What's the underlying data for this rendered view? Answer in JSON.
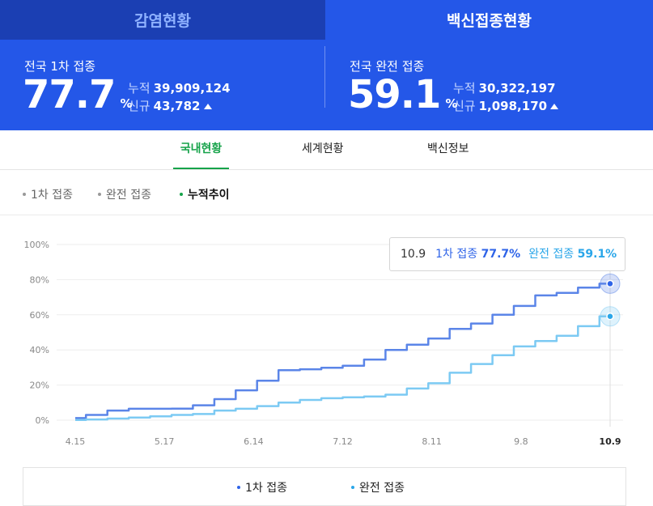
{
  "top_tabs": [
    {
      "label": "감염현황",
      "active": false
    },
    {
      "label": "백신접종현황",
      "active": true
    }
  ],
  "stats": {
    "first": {
      "label": "전국 1차 접종",
      "value": "77.7",
      "unit": "%",
      "cumulative_label": "누적",
      "cumulative": "39,909,124",
      "new_label": "신규",
      "new": "43,782"
    },
    "full": {
      "label": "전국 완전 접종",
      "value": "59.1",
      "unit": "%",
      "cumulative_label": "누적",
      "cumulative": "30,322,197",
      "new_label": "신규",
      "new": "1,098,170"
    }
  },
  "sub_tabs": [
    "국내현황",
    "세계현황",
    "백신정보"
  ],
  "filters": [
    "1차 접종",
    "완전 접종",
    "누적추이"
  ],
  "tooltip": {
    "date": "10.9",
    "series1_label": "1차 접종",
    "series1_value": "77.7%",
    "series2_label": "완전 접종",
    "series2_value": "59.1%"
  },
  "legend": [
    "1차 접종",
    "완전 접종"
  ],
  "colors": {
    "series1": "#5b85e8",
    "series2": "#7ccaf3",
    "accent": "#2457e8",
    "active_tab": "#16a34a"
  },
  "chart_data": {
    "type": "line",
    "x_ticks": [
      "4.15",
      "5.17",
      "6.14",
      "7.12",
      "8.11",
      "9.8",
      "10.9"
    ],
    "y_ticks": [
      "0%",
      "20%",
      "40%",
      "60%",
      "80%",
      "100%"
    ],
    "ylim": [
      0,
      100
    ],
    "x": [
      "4.15",
      "4.22",
      "4.29",
      "5.06",
      "5.17",
      "5.31",
      "6.03",
      "6.10",
      "6.14",
      "6.17",
      "6.24",
      "7.01",
      "7.08",
      "7.12",
      "7.26",
      "8.02",
      "8.11",
      "8.18",
      "8.25",
      "9.01",
      "9.08",
      "9.15",
      "9.22",
      "9.29",
      "10.06",
      "10.09"
    ],
    "series": [
      {
        "name": "1차 접종",
        "values": [
          1.2,
          3,
          5.5,
          6.5,
          6.5,
          6.6,
          8.5,
          12,
          17,
          22.5,
          28.5,
          29,
          29.8,
          31,
          34.5,
          40,
          43,
          46.5,
          52,
          55,
          60,
          65,
          71,
          72.5,
          75.5,
          77.7
        ]
      },
      {
        "name": "완전 접종",
        "values": [
          0.1,
          0.4,
          0.9,
          1.5,
          2.2,
          3,
          3.5,
          5.5,
          6.5,
          8,
          10,
          11.5,
          12.5,
          13,
          13.5,
          14.5,
          18,
          21,
          27,
          32,
          37,
          42,
          45,
          48,
          53.5,
          59.1
        ]
      }
    ]
  }
}
